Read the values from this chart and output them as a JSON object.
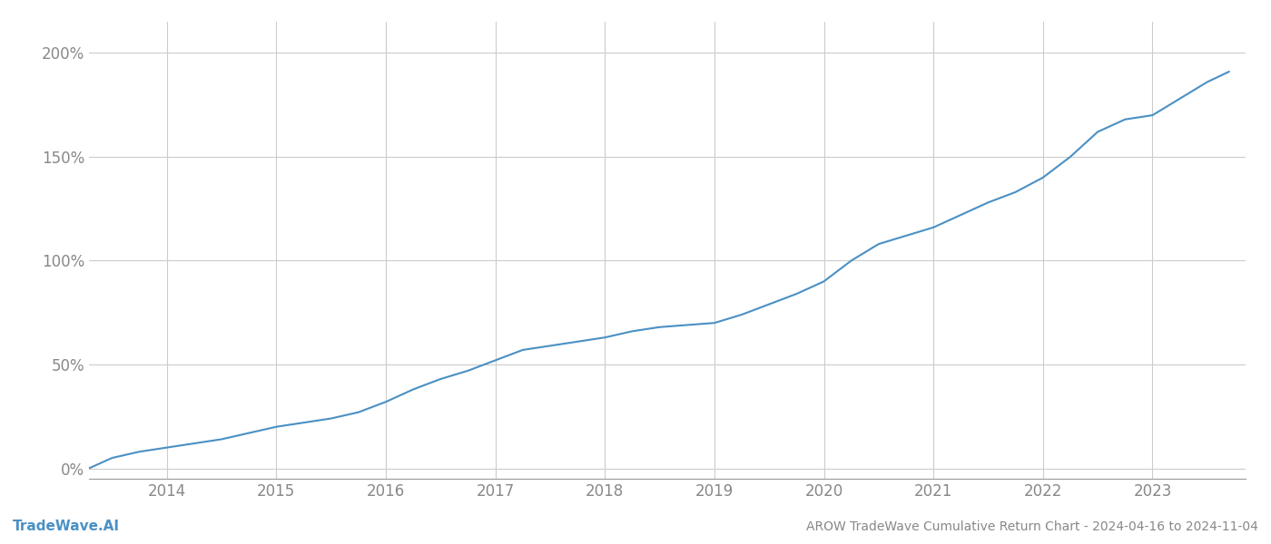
{
  "title": "AROW TradeWave Cumulative Return Chart - 2024-04-16 to 2024-11-04",
  "footer_left": "TradeWave.AI",
  "footer_right": "AROW TradeWave Cumulative Return Chart - 2024-04-16 to 2024-11-04",
  "line_color": "#4a90c4",
  "background_color": "#ffffff",
  "grid_color": "#cccccc",
  "text_color": "#888888",
  "x_values": [
    2013.29,
    2013.5,
    2013.75,
    2014.0,
    2014.25,
    2014.5,
    2014.75,
    2015.0,
    2015.25,
    2015.5,
    2015.75,
    2016.0,
    2016.25,
    2016.5,
    2016.75,
    2017.0,
    2017.25,
    2017.5,
    2017.75,
    2018.0,
    2018.25,
    2018.5,
    2018.75,
    2019.0,
    2019.25,
    2019.5,
    2019.75,
    2020.0,
    2020.25,
    2020.5,
    2020.75,
    2021.0,
    2021.25,
    2021.5,
    2021.75,
    2022.0,
    2022.25,
    2022.5,
    2022.75,
    2023.0,
    2023.25,
    2023.5,
    2023.7
  ],
  "y_values": [
    0.0,
    5.0,
    8.0,
    10.0,
    12.0,
    14.0,
    17.0,
    20.0,
    22.0,
    24.0,
    27.0,
    32.0,
    38.0,
    43.0,
    47.0,
    52.0,
    57.0,
    59.0,
    61.0,
    63.0,
    66.0,
    68.0,
    69.0,
    70.0,
    74.0,
    79.0,
    84.0,
    90.0,
    100.0,
    108.0,
    112.0,
    116.0,
    122.0,
    128.0,
    133.0,
    140.0,
    150.0,
    162.0,
    168.0,
    170.0,
    178.0,
    186.0,
    191.0
  ],
  "xlim": [
    2013.29,
    2023.85
  ],
  "ylim": [
    -5,
    215
  ],
  "yticks": [
    0,
    50,
    100,
    150,
    200
  ],
  "ytick_labels": [
    "0%",
    "50%",
    "100%",
    "150%",
    "200%"
  ],
  "xticks": [
    2014,
    2015,
    2016,
    2017,
    2018,
    2019,
    2020,
    2021,
    2022,
    2023
  ],
  "xtick_labels": [
    "2014",
    "2015",
    "2016",
    "2017",
    "2018",
    "2019",
    "2020",
    "2021",
    "2022",
    "2023"
  ],
  "line_width": 1.5,
  "figsize": [
    14.0,
    6.0
  ],
  "dpi": 100
}
